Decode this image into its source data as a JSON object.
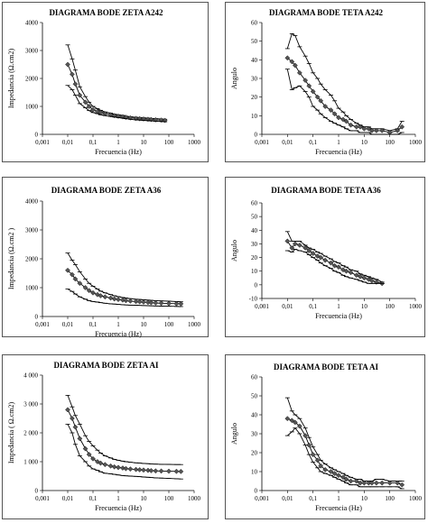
{
  "chart_data": [
    {
      "type": "line",
      "title": "DIAGRAMA BODE ZETA A242",
      "xlabel": "Frecuencia (Hz)",
      "ylabel": "Impedancia (Ω.cm2)",
      "xscale": "log",
      "xlim": [
        0.001,
        1000
      ],
      "ylim": [
        0,
        4000
      ],
      "xticks": [
        "0,001",
        "0,01",
        "0,1",
        "1",
        "10",
        "100",
        "1000"
      ],
      "yticks": [
        "0",
        "1000",
        "2000",
        "3000",
        "4000"
      ],
      "x": [
        0.01,
        0.015,
        0.02,
        0.03,
        0.05,
        0.07,
        0.1,
        0.15,
        0.2,
        0.3,
        0.5,
        0.7,
        1,
        1.5,
        2,
        3,
        5,
        7,
        10,
        15,
        20,
        30,
        50,
        70
      ],
      "series": [
        {
          "values": [
            3200,
            2700,
            2300,
            1700,
            1350,
            1150,
            1000,
            920,
            860,
            800,
            760,
            720,
            700,
            680,
            650,
            630,
            610,
            600,
            590,
            580,
            570,
            560,
            550,
            540
          ]
        },
        {
          "values": [
            2500,
            2150,
            1800,
            1400,
            1150,
            1000,
            880,
            820,
            780,
            740,
            700,
            670,
            650,
            630,
            610,
            590,
            570,
            560,
            550,
            540,
            530,
            520,
            510,
            500
          ],
          "marker": "diamond"
        },
        {
          "values": [
            1750,
            1600,
            1400,
            1100,
            950,
            850,
            780,
            740,
            700,
            670,
            640,
            620,
            600,
            580,
            560,
            540,
            520,
            510,
            500,
            490,
            480,
            470,
            460,
            450
          ]
        }
      ]
    },
    {
      "type": "line",
      "title": "DIAGRAMA BODE TETA A242",
      "xlabel": "Frecuencia (Hz)",
      "ylabel": "Angulo",
      "xscale": "log",
      "xlim": [
        0.001,
        1000
      ],
      "ylim": [
        0,
        60
      ],
      "xticks": [
        "0,001",
        "0,01",
        "0,1",
        "1",
        "10",
        "100",
        "1000"
      ],
      "yticks": [
        "0",
        "10",
        "20",
        "30",
        "40",
        "50",
        "60"
      ],
      "x": [
        0.01,
        0.015,
        0.02,
        0.03,
        0.05,
        0.07,
        0.1,
        0.15,
        0.2,
        0.3,
        0.5,
        0.7,
        1,
        1.5,
        2,
        3,
        5,
        7,
        10,
        15,
        20,
        30,
        50,
        100,
        200,
        300
      ],
      "series": [
        {
          "values": [
            46,
            54,
            53,
            47,
            42,
            38,
            33,
            30,
            27,
            24,
            21,
            18,
            14,
            12,
            10,
            8,
            6,
            5,
            4,
            4,
            3,
            3,
            3,
            2,
            3,
            7
          ]
        },
        {
          "values": [
            41,
            39,
            37,
            33,
            29,
            26,
            23,
            20,
            18,
            15,
            13,
            11,
            9,
            8,
            7,
            5,
            4,
            4,
            3,
            3,
            2,
            2,
            2,
            1,
            2,
            4
          ],
          "marker": "diamond"
        },
        {
          "values": [
            35,
            24,
            25,
            26,
            23,
            20,
            15,
            13,
            11,
            9,
            7,
            6,
            5,
            4,
            3,
            2,
            2,
            1,
            1,
            1,
            0,
            0,
            0,
            0,
            0,
            1
          ]
        }
      ]
    },
    {
      "type": "line",
      "title": "DIAGRAMA BODE ZETA A36",
      "xlabel": "Frecuencia (Hz)",
      "ylabel": "Impedancia (Ω.cm2 )",
      "xscale": "log",
      "xlim": [
        0.001,
        1000
      ],
      "ylim": [
        0,
        4000
      ],
      "xticks": [
        "0,001",
        "0,01",
        "0,1",
        "1",
        "10",
        "100",
        "1000"
      ],
      "yticks": [
        "0",
        "1000",
        "2000",
        "3000",
        "4000"
      ],
      "x": [
        0.01,
        0.015,
        0.02,
        0.03,
        0.05,
        0.07,
        0.1,
        0.15,
        0.2,
        0.3,
        0.5,
        0.7,
        1,
        1.5,
        2,
        3,
        5,
        7,
        10,
        15,
        20,
        30,
        50,
        100,
        200,
        300
      ],
      "series": [
        {
          "values": [
            2200,
            1950,
            1800,
            1550,
            1300,
            1150,
            1050,
            950,
            880,
            820,
            760,
            720,
            690,
            660,
            640,
            620,
            600,
            590,
            580,
            570,
            560,
            550,
            540,
            530,
            520,
            510
          ]
        },
        {
          "values": [
            1600,
            1450,
            1300,
            1150,
            1000,
            900,
            820,
            760,
            720,
            680,
            640,
            610,
            590,
            570,
            550,
            535,
            520,
            510,
            500,
            490,
            480,
            470,
            460,
            450,
            445,
            440
          ],
          "marker": "diamond"
        },
        {
          "values": [
            950,
            870,
            780,
            680,
            600,
            550,
            520,
            500,
            480,
            460,
            440,
            430,
            420,
            410,
            400,
            395,
            390,
            385,
            380,
            375,
            370,
            365,
            360,
            355,
            350,
            345
          ]
        }
      ]
    },
    {
      "type": "line",
      "title": "DIAGRAMA BODE TETA A36",
      "xlabel": "Frecuencia (Hz)",
      "ylabel": "Angulo",
      "xscale": "log",
      "xlim": [
        0.001,
        1000
      ],
      "ylim": [
        -10,
        60
      ],
      "xticks": [
        "0,001",
        "0,01",
        "0,1",
        "1",
        "10",
        "100",
        "1000"
      ],
      "yticks": [
        "-10",
        "0",
        "10",
        "20",
        "30",
        "40",
        "50",
        "60"
      ],
      "x": [
        0.01,
        0.015,
        0.02,
        0.03,
        0.05,
        0.07,
        0.1,
        0.15,
        0.2,
        0.3,
        0.5,
        0.7,
        1,
        1.5,
        2,
        3,
        5,
        7,
        10,
        15,
        20,
        30,
        50
      ],
      "series": [
        {
          "values": [
            39,
            32,
            32,
            32,
            29,
            27,
            26,
            24,
            23,
            21,
            19,
            17,
            16,
            14,
            13,
            11,
            10,
            8,
            7,
            6,
            5,
            4,
            2
          ]
        },
        {
          "values": [
            32,
            27,
            30,
            29,
            27,
            25,
            23,
            21,
            20,
            18,
            16,
            14,
            13,
            11,
            10,
            9,
            7,
            6,
            5,
            4,
            3,
            2,
            1
          ],
          "marker": "diamond"
        },
        {
          "values": [
            25,
            24,
            26,
            25,
            24,
            22,
            20,
            18,
            16,
            14,
            12,
            10,
            9,
            7,
            6,
            5,
            4,
            3,
            2,
            1,
            1,
            1,
            1
          ]
        }
      ]
    },
    {
      "type": "line",
      "title": "DIAGRAMA BODE ZETA AI",
      "xlabel": "Frecuencia (Hz)",
      "ylabel": "Impedancia ( Ω.cm2)",
      "xscale": "log",
      "xlim": [
        0.001,
        1000
      ],
      "ylim": [
        0,
        4000
      ],
      "xticks": [
        "0,001",
        "0,01",
        "0,1",
        "1",
        "10",
        "100",
        "1000"
      ],
      "yticks": [
        "0",
        "1 000",
        "2 000",
        "3 000",
        "4 000"
      ],
      "x": [
        0.01,
        0.015,
        0.02,
        0.03,
        0.05,
        0.07,
        0.1,
        0.15,
        0.2,
        0.3,
        0.5,
        0.7,
        1,
        1.5,
        2,
        3,
        5,
        7,
        10,
        15,
        20,
        30,
        50,
        100,
        200,
        300
      ],
      "series": [
        {
          "values": [
            3300,
            2900,
            2600,
            2300,
            1900,
            1700,
            1550,
            1400,
            1300,
            1200,
            1130,
            1080,
            1050,
            1020,
            1000,
            980,
            960,
            950,
            940,
            930,
            920,
            915,
            910,
            905,
            900,
            900
          ]
        },
        {
          "values": [
            2800,
            2500,
            2200,
            1800,
            1450,
            1250,
            1100,
            1000,
            950,
            900,
            850,
            820,
            800,
            780,
            760,
            745,
            730,
            720,
            710,
            700,
            690,
            680,
            675,
            670,
            665,
            660
          ],
          "marker": "diamond"
        },
        {
          "values": [
            2300,
            2000,
            1600,
            1200,
            1000,
            850,
            750,
            700,
            650,
            600,
            580,
            560,
            540,
            520,
            510,
            500,
            490,
            480,
            470,
            460,
            450,
            440,
            430,
            420,
            410,
            400
          ]
        }
      ]
    },
    {
      "type": "line",
      "title": "DIAGRAMA BODE TETA AI",
      "xlabel": "Frecuencia (Hz)",
      "ylabel": "Angulo",
      "xscale": "log",
      "xlim": [
        0.001,
        1000
      ],
      "ylim": [
        0,
        60
      ],
      "xticks": [
        "0,001",
        "0,01",
        "0,1",
        "1",
        "10",
        "100",
        "1000"
      ],
      "yticks": [
        "0",
        "10",
        "20",
        "30",
        "40",
        "50",
        "60"
      ],
      "x": [
        0.01,
        0.015,
        0.02,
        0.03,
        0.05,
        0.07,
        0.1,
        0.15,
        0.2,
        0.3,
        0.5,
        0.7,
        1,
        1.5,
        2,
        3,
        5,
        7,
        10,
        15,
        20,
        30,
        50,
        100,
        200,
        300
      ],
      "series": [
        {
          "values": [
            49,
            42,
            40,
            38,
            33,
            28,
            23,
            19,
            16,
            14,
            12,
            11,
            10,
            9,
            8,
            7,
            6,
            6,
            5,
            5,
            5,
            6,
            6,
            5,
            5,
            5
          ]
        },
        {
          "values": [
            38,
            37,
            36,
            34,
            29,
            24,
            19,
            16,
            13,
            11,
            10,
            9,
            8,
            7,
            6,
            5,
            5,
            4,
            4,
            4,
            4,
            4,
            4,
            4,
            4,
            3
          ],
          "marker": "diamond"
        },
        {
          "values": [
            29,
            31,
            33,
            30,
            24,
            19,
            15,
            12,
            10,
            9,
            8,
            7,
            6,
            5,
            4,
            3,
            3,
            2,
            2,
            2,
            2,
            2,
            2,
            2,
            2,
            1
          ]
        }
      ]
    }
  ]
}
